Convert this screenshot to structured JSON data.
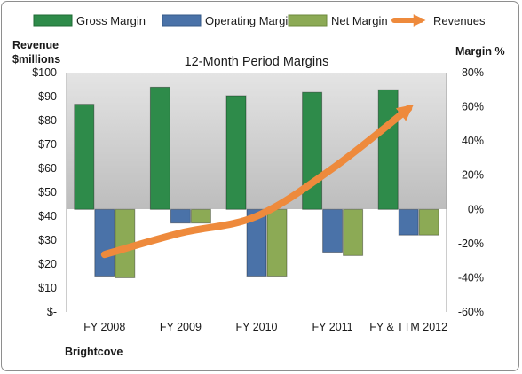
{
  "chart_data": {
    "type": "bar",
    "title": "12-Month Period Margins",
    "categories": [
      "FY 2008",
      "FY 2009",
      "FY 2010",
      "FY 2011",
      "FY & TTM 2012"
    ],
    "series": [
      {
        "name": "Gross Margin",
        "kind": "bar",
        "axis": "right",
        "color": "#2e8b4a",
        "values": [
          61.5,
          71.5,
          66.5,
          68.5,
          70
        ]
      },
      {
        "name": "Operating Margin",
        "kind": "bar",
        "axis": "right",
        "color": "#4a72a8",
        "values": [
          -39,
          -8,
          -39,
          -25,
          -15
        ]
      },
      {
        "name": "Net Margin",
        "kind": "bar",
        "axis": "right",
        "color": "#8caa55",
        "values": [
          -40,
          -8,
          -39,
          -27,
          -15
        ]
      },
      {
        "name": "Revenues",
        "kind": "line",
        "axis": "left",
        "color": "#ee8a3c",
        "values": [
          24,
          33,
          40,
          60,
          85
        ]
      }
    ],
    "y_left": {
      "label_line1": "Revenue",
      "label_line2": "$millions",
      "range": [
        0,
        100
      ],
      "ticks": [
        "$-",
        "$10",
        "$20",
        "$30",
        "$40",
        "$50",
        "$60",
        "$70",
        "$80",
        "$90",
        "$100"
      ]
    },
    "y_right": {
      "label": "Margin %",
      "range": [
        -60,
        80
      ],
      "ticks": [
        "-60%",
        "-40%",
        "-20%",
        "0%",
        "20%",
        "40%",
        "60%",
        "80%"
      ]
    },
    "legend_position": "top",
    "grid": false,
    "gridband": "upper area shaded grey, lower area white",
    "footer_label": "Brightcove"
  }
}
